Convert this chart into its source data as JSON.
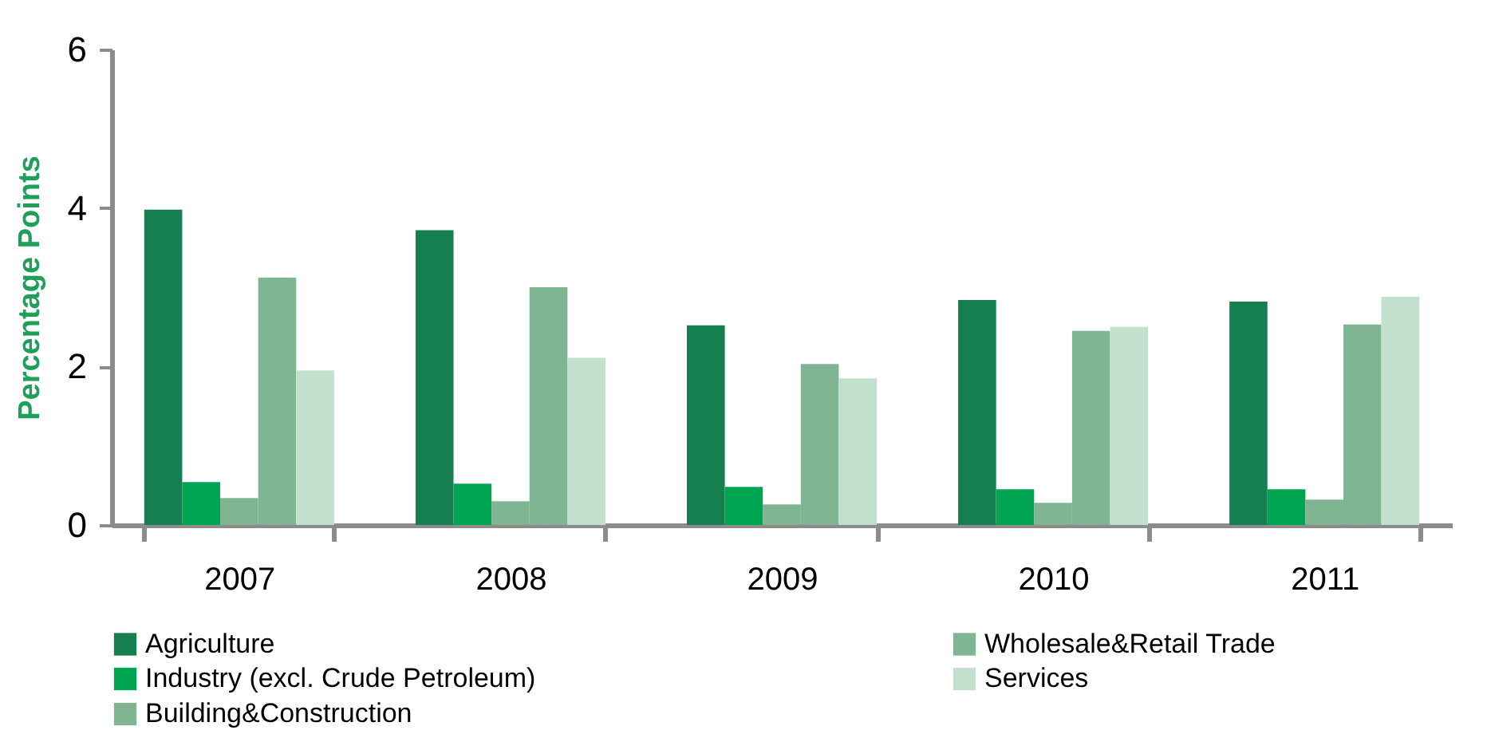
{
  "chart_data": {
    "type": "bar",
    "ylabel": "Percentage Points",
    "categories": [
      "2007",
      "2008",
      "2009",
      "2010",
      "2011"
    ],
    "series": [
      {
        "name": "Agriculture",
        "color": "#167f4f",
        "values": [
          3.98,
          3.72,
          2.52,
          2.84,
          2.82
        ]
      },
      {
        "name": "Industry (excl. Crude Petroleum)",
        "color": "#00a551",
        "values": [
          0.54,
          0.52,
          0.48,
          0.45,
          0.45
        ]
      },
      {
        "name": "Building&Construction",
        "color": "#7fb591",
        "values": [
          0.34,
          0.3,
          0.26,
          0.28,
          0.32
        ]
      },
      {
        "name": "Wholesale&Retail Trade",
        "color": "#7fb592",
        "values": [
          3.12,
          3.0,
          2.03,
          2.45,
          2.53
        ]
      },
      {
        "name": "Services",
        "color": "#c3e0ce",
        "values": [
          1.95,
          2.11,
          1.85,
          2.5,
          2.88
        ]
      }
    ],
    "ylim": [
      0,
      6
    ],
    "yticks": [
      0,
      2,
      4,
      6
    ],
    "grid": false,
    "legend": "bottom"
  }
}
